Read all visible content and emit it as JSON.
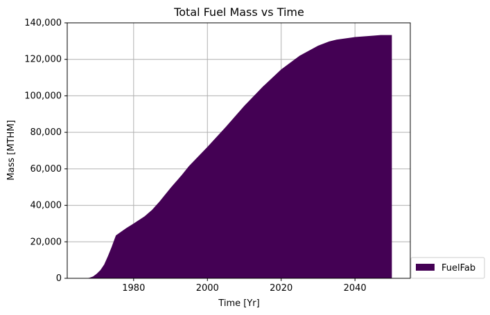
{
  "chart_data": {
    "type": "area",
    "title": "Total Fuel Mass vs Time",
    "xlabel": "Time [Yr]",
    "ylabel": "Mass [MTHM]",
    "xlim": [
      1962,
      2055
    ],
    "ylim": [
      0,
      140000
    ],
    "x_ticks": [
      1980,
      2000,
      2020,
      2040
    ],
    "x_tick_labels": [
      "1980",
      "2000",
      "2020",
      "2040"
    ],
    "y_ticks": [
      0,
      20000,
      40000,
      60000,
      80000,
      100000,
      120000,
      140000
    ],
    "y_tick_labels": [
      "0",
      "20,000",
      "40,000",
      "60,000",
      "80,000",
      "100,000",
      "120,000",
      "140,000"
    ],
    "grid": true,
    "legend_position": "lower-right outside",
    "series": [
      {
        "name": "FuelFab",
        "color": "#440154",
        "x": [
          1967,
          1968,
          1969,
          1970,
          1971,
          1972,
          1973,
          1974,
          1975,
          1975.2,
          1978,
          1980,
          1983,
          1985,
          1987,
          1990,
          1993,
          1995,
          2000,
          2005,
          2010,
          2015,
          2020,
          2025,
          2030,
          2033,
          2035,
          2040,
          2045,
          2047,
          2050
        ],
        "values": [
          0,
          300,
          1000,
          2500,
          4500,
          7500,
          12000,
          17000,
          22500,
          23500,
          27500,
          30000,
          34000,
          37500,
          42000,
          49500,
          56500,
          61500,
          72000,
          83000,
          94500,
          105000,
          114500,
          122000,
          127500,
          129800,
          130800,
          132200,
          133000,
          133300,
          133300
        ]
      }
    ]
  }
}
